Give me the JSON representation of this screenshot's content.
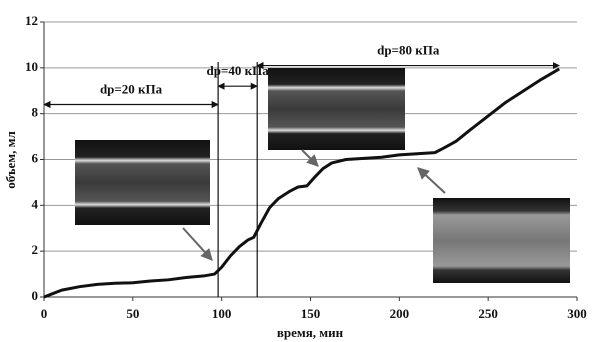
{
  "chart_data": {
    "type": "line",
    "xlabel": "время, мин",
    "ylabel": "объем, мл",
    "x": [
      0,
      5,
      10,
      20,
      30,
      40,
      50,
      60,
      70,
      80,
      90,
      96,
      100,
      105,
      110,
      115,
      118,
      122,
      127,
      132,
      138,
      143,
      148,
      152,
      157,
      162,
      170,
      180,
      190,
      200,
      210,
      220,
      225,
      232,
      240,
      250,
      260,
      270,
      280,
      290
    ],
    "values": [
      0,
      0.15,
      0.3,
      0.45,
      0.55,
      0.6,
      0.62,
      0.7,
      0.75,
      0.85,
      0.92,
      1.0,
      1.3,
      1.8,
      2.2,
      2.5,
      2.6,
      3.2,
      3.9,
      4.3,
      4.6,
      4.8,
      4.85,
      5.2,
      5.6,
      5.85,
      6.0,
      6.05,
      6.1,
      6.2,
      6.25,
      6.3,
      6.5,
      6.8,
      7.3,
      7.9,
      8.5,
      9.0,
      9.5,
      9.95
    ],
    "color": "#111111",
    "xlim": [
      0,
      300
    ],
    "xticks": [
      0,
      50,
      100,
      150,
      200,
      250,
      300
    ],
    "ylim": [
      0,
      12
    ],
    "yticks": [
      0,
      2,
      4,
      6,
      8,
      10,
      12
    ],
    "grid": true,
    "vlines": [
      98,
      120
    ],
    "annotations": [
      {
        "text": "dp=20 кПа",
        "x_start": 0,
        "x_end": 98,
        "y": 8.4
      },
      {
        "text": "dp=40 кПа",
        "x_start": 98,
        "x_end": 120,
        "y": 9.2
      },
      {
        "text": "dp=80 кПа",
        "x_start": 120,
        "x_end": 290,
        "y": 10.1
      }
    ]
  }
}
